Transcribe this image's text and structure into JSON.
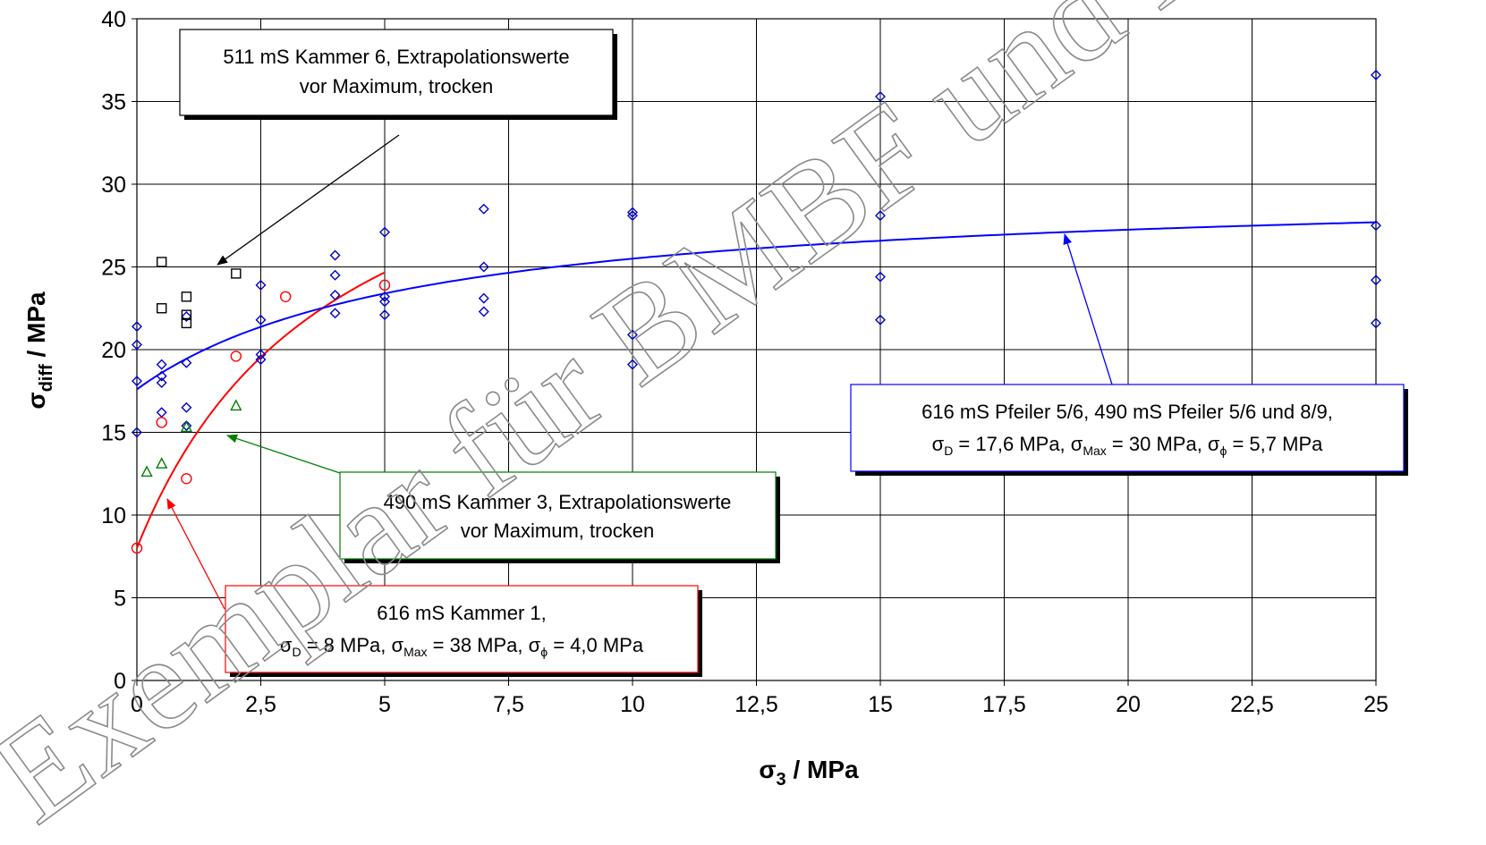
{
  "chart_data": {
    "type": "scatter",
    "xlabel": {
      "main": "σ",
      "sub": "3",
      "rest": " / MPa"
    },
    "ylabel": {
      "main": "σ",
      "sub": "diff",
      "rest": " / MPa"
    },
    "xlim": [
      0,
      25
    ],
    "ylim": [
      0,
      40
    ],
    "x_ticks": [
      {
        "value": 0,
        "label": "0"
      },
      {
        "value": 2.5,
        "label": "2,5"
      },
      {
        "value": 5,
        "label": "5"
      },
      {
        "value": 7.5,
        "label": "7,5"
      },
      {
        "value": 10,
        "label": "10"
      },
      {
        "value": 12.5,
        "label": "12,5"
      },
      {
        "value": 15,
        "label": "15"
      },
      {
        "value": 17.5,
        "label": "17,5"
      },
      {
        "value": 20,
        "label": "20"
      },
      {
        "value": 22.5,
        "label": "22,5"
      },
      {
        "value": 25,
        "label": "25"
      }
    ],
    "y_ticks": [
      {
        "value": 0,
        "label": "0"
      },
      {
        "value": 5,
        "label": "5"
      },
      {
        "value": 10,
        "label": "10"
      },
      {
        "value": 15,
        "label": "15"
      },
      {
        "value": 20,
        "label": "20"
      },
      {
        "value": 25,
        "label": "25"
      },
      {
        "value": 30,
        "label": "30"
      },
      {
        "value": 35,
        "label": "35"
      },
      {
        "value": 40,
        "label": "40"
      }
    ],
    "grid": true,
    "series": [
      {
        "marker": "diamond",
        "color": "#0000cc",
        "points": [
          [
            0,
            21.4
          ],
          [
            0,
            20.3
          ],
          [
            0,
            18.1
          ],
          [
            0,
            15.0
          ],
          [
            0.5,
            19.1
          ],
          [
            0.5,
            18.4
          ],
          [
            0.5,
            18.0
          ],
          [
            0.5,
            16.2
          ],
          [
            1,
            22.0
          ],
          [
            1,
            19.2
          ],
          [
            1,
            16.5
          ],
          [
            1,
            15.4
          ],
          [
            2.5,
            23.9
          ],
          [
            2.5,
            21.8
          ],
          [
            2.5,
            19.7
          ],
          [
            2.5,
            19.4
          ],
          [
            4,
            25.7
          ],
          [
            4,
            24.5
          ],
          [
            4,
            23.3
          ],
          [
            4,
            22.2
          ],
          [
            5,
            27.1
          ],
          [
            5,
            23.2
          ],
          [
            5,
            22.9
          ],
          [
            5,
            22.1
          ],
          [
            7,
            28.5
          ],
          [
            7,
            25.0
          ],
          [
            7,
            23.1
          ],
          [
            7,
            22.3
          ],
          [
            10,
            28.3
          ],
          [
            10,
            28.1
          ],
          [
            10,
            20.9
          ],
          [
            10,
            19.1
          ],
          [
            15,
            35.3
          ],
          [
            15,
            28.1
          ],
          [
            15,
            24.4
          ],
          [
            15,
            21.8
          ],
          [
            25,
            36.6
          ],
          [
            25,
            27.5
          ],
          [
            25,
            24.2
          ],
          [
            25,
            21.6
          ]
        ]
      },
      {
        "marker": "square",
        "color": "#000000",
        "points": [
          [
            0.5,
            25.3
          ],
          [
            0.5,
            22.5
          ],
          [
            1,
            23.2
          ],
          [
            1,
            22.1
          ],
          [
            1,
            21.6
          ],
          [
            2,
            24.6
          ]
        ]
      },
      {
        "marker": "triangle",
        "color": "#008000",
        "points": [
          [
            0.2,
            12.6
          ],
          [
            0.5,
            13.1
          ],
          [
            1,
            15.3
          ],
          [
            2,
            16.6
          ]
        ]
      },
      {
        "marker": "circle",
        "color": "#ff0000",
        "points": [
          [
            0,
            8.0
          ],
          [
            0.5,
            15.6
          ],
          [
            1,
            12.2
          ],
          [
            2,
            19.6
          ],
          [
            3,
            23.2
          ],
          [
            5,
            23.9
          ]
        ]
      }
    ],
    "fit_curves": [
      {
        "color": "#ff0000",
        "sigma_d": 8,
        "sigma_max": 38,
        "sigma_phi": 4.0,
        "x_range": [
          0,
          5
        ]
      },
      {
        "color": "#0000ff",
        "sigma_d": 17.6,
        "sigma_max": 30,
        "sigma_phi": 5.7,
        "x_range": [
          0,
          25
        ]
      }
    ],
    "annotations": [
      {
        "id": "black",
        "color": "#000000",
        "lines": [
          "511 mS Kammer 6, Extrapolationswerte",
          "vor Maximum, trocken"
        ]
      },
      {
        "id": "green",
        "color": "#008000",
        "lines": [
          "490 mS Kammer 3, Extrapolationswerte",
          "vor Maximum, trocken"
        ]
      },
      {
        "id": "red",
        "color": "#ff0000",
        "lines": [
          "616 mS Kammer 1,",
          "σD = 8 MPa, σMax = 38 MPa, σϕ = 4,0 MPa"
        ]
      },
      {
        "id": "blue",
        "color": "#0000ff",
        "lines": [
          "616 mS Pfeiler 5/6, 490 mS Pfeiler 5/6 und 8/9,",
          "σD = 17,6 MPa, σMax = 30 MPa, σϕ = 5,7 MPa"
        ]
      }
    ],
    "watermark": "Exemplar für BMBF und BGR"
  }
}
